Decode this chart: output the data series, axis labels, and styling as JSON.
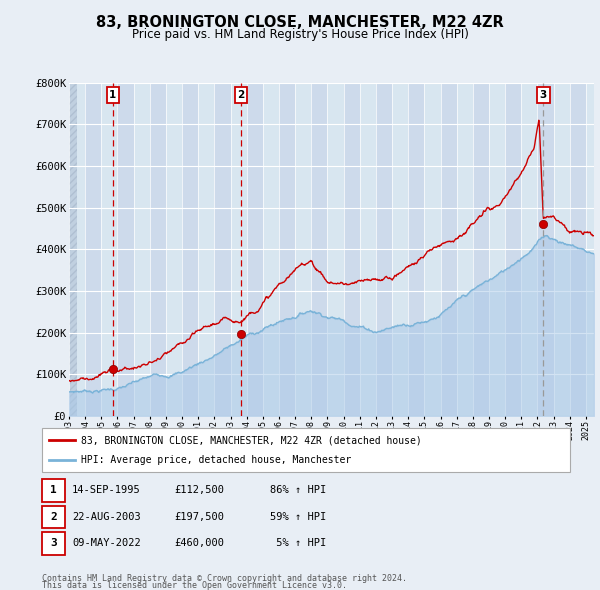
{
  "title": "83, BRONINGTON CLOSE, MANCHESTER, M22 4ZR",
  "subtitle": "Price paid vs. HM Land Registry's House Price Index (HPI)",
  "ylim": [
    0,
    800000
  ],
  "yticks": [
    0,
    100000,
    200000,
    300000,
    400000,
    500000,
    600000,
    700000,
    800000
  ],
  "ytick_labels": [
    "£0",
    "£100K",
    "£200K",
    "£300K",
    "£400K",
    "£500K",
    "£600K",
    "£700K",
    "£800K"
  ],
  "background_color": "#e8eef5",
  "plot_bg_color_even": "#d8e6f0",
  "plot_bg_color_odd": "#cddaeb",
  "hatch_color": "#b8cce0",
  "grid_color": "#ffffff",
  "hpi_line_color": "#7ab3d8",
  "hpi_fill_color": "#a8c8e8",
  "price_line_color": "#cc0000",
  "vline_color_sale": "#cc0000",
  "vline_color_last": "#999999",
  "marker_color": "#cc0000",
  "sale_points": [
    {
      "date_num": 1995.71,
      "price": 112500,
      "label": "1"
    },
    {
      "date_num": 2003.64,
      "price": 197500,
      "label": "2"
    },
    {
      "date_num": 2022.36,
      "price": 460000,
      "label": "3"
    }
  ],
  "legend_line1": "83, BRONINGTON CLOSE, MANCHESTER, M22 4ZR (detached house)",
  "legend_line2": "HPI: Average price, detached house, Manchester",
  "table_rows": [
    {
      "num": "1",
      "date": "14-SEP-1995",
      "price": "£112,500",
      "hpi": "86% ↑ HPI"
    },
    {
      "num": "2",
      "date": "22-AUG-2003",
      "price": "£197,500",
      "hpi": "59% ↑ HPI"
    },
    {
      "num": "3",
      "date": "09-MAY-2022",
      "price": "£460,000",
      "hpi": " 5% ↑ HPI"
    }
  ],
  "footnote1": "Contains HM Land Registry data © Crown copyright and database right 2024.",
  "footnote2": "This data is licensed under the Open Government Licence v3.0.",
  "xstart": 1993.0,
  "xend": 2025.5
}
